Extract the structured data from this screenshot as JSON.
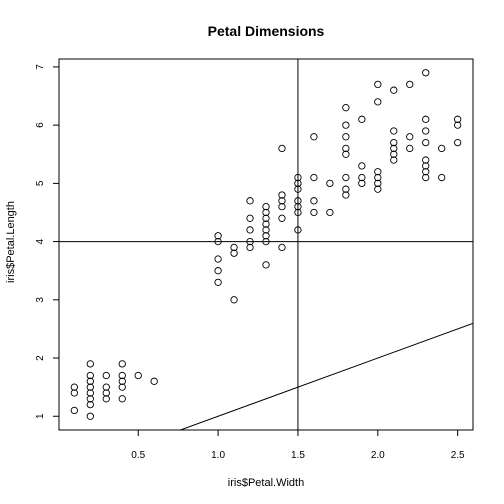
{
  "chart_data": {
    "type": "scatter",
    "title": "Petal Dimensions",
    "xlabel": "iris$Petal.Width",
    "ylabel": "iris$Petal.Length",
    "xlim": [
      0.1,
      2.5
    ],
    "ylim": [
      1.0,
      6.9
    ],
    "x_ticks": [
      0.5,
      1.0,
      1.5,
      2.0,
      2.5
    ],
    "x_tick_labels": [
      "0.5",
      "1.0",
      "1.5",
      "2.0",
      "2.5"
    ],
    "y_ticks": [
      1,
      2,
      3,
      4,
      5,
      6,
      7
    ],
    "y_tick_labels": [
      "1",
      "2",
      "3",
      "4",
      "5",
      "6",
      "7"
    ],
    "grid": false,
    "legend": "none",
    "reference_lines": {
      "vertical_x": 1.5,
      "horizontal_y": 4.0,
      "abline": {
        "intercept": 0,
        "slope": 1
      }
    },
    "points": [
      [
        0.1,
        1.1
      ],
      [
        0.1,
        1.4
      ],
      [
        0.1,
        1.5
      ],
      [
        0.2,
        1.0
      ],
      [
        0.2,
        1.2
      ],
      [
        0.2,
        1.3
      ],
      [
        0.2,
        1.4
      ],
      [
        0.2,
        1.5
      ],
      [
        0.2,
        1.6
      ],
      [
        0.2,
        1.7
      ],
      [
        0.2,
        1.9
      ],
      [
        0.3,
        1.3
      ],
      [
        0.3,
        1.4
      ],
      [
        0.3,
        1.5
      ],
      [
        0.3,
        1.7
      ],
      [
        0.4,
        1.3
      ],
      [
        0.4,
        1.5
      ],
      [
        0.4,
        1.6
      ],
      [
        0.4,
        1.7
      ],
      [
        0.4,
        1.9
      ],
      [
        0.5,
        1.7
      ],
      [
        0.6,
        1.6
      ],
      [
        1.0,
        3.3
      ],
      [
        1.0,
        3.5
      ],
      [
        1.0,
        3.7
      ],
      [
        1.0,
        4.0
      ],
      [
        1.0,
        4.1
      ],
      [
        1.1,
        3.0
      ],
      [
        1.1,
        3.8
      ],
      [
        1.1,
        3.9
      ],
      [
        1.2,
        3.9
      ],
      [
        1.2,
        4.0
      ],
      [
        1.2,
        4.2
      ],
      [
        1.2,
        4.4
      ],
      [
        1.2,
        4.7
      ],
      [
        1.3,
        3.6
      ],
      [
        1.3,
        4.0
      ],
      [
        1.3,
        4.1
      ],
      [
        1.3,
        4.2
      ],
      [
        1.3,
        4.3
      ],
      [
        1.3,
        4.4
      ],
      [
        1.3,
        4.5
      ],
      [
        1.3,
        4.6
      ],
      [
        1.4,
        3.9
      ],
      [
        1.4,
        4.4
      ],
      [
        1.4,
        4.6
      ],
      [
        1.4,
        4.7
      ],
      [
        1.4,
        4.8
      ],
      [
        1.4,
        5.6
      ],
      [
        1.5,
        4.2
      ],
      [
        1.5,
        4.5
      ],
      [
        1.5,
        4.6
      ],
      [
        1.5,
        4.7
      ],
      [
        1.5,
        4.9
      ],
      [
        1.5,
        5.0
      ],
      [
        1.5,
        5.1
      ],
      [
        1.6,
        4.5
      ],
      [
        1.6,
        4.7
      ],
      [
        1.6,
        5.1
      ],
      [
        1.6,
        5.8
      ],
      [
        1.7,
        4.5
      ],
      [
        1.7,
        5.0
      ],
      [
        1.8,
        4.8
      ],
      [
        1.8,
        4.9
      ],
      [
        1.8,
        5.1
      ],
      [
        1.8,
        5.5
      ],
      [
        1.8,
        5.6
      ],
      [
        1.8,
        5.8
      ],
      [
        1.8,
        6.0
      ],
      [
        1.8,
        6.3
      ],
      [
        1.9,
        5.0
      ],
      [
        1.9,
        5.1
      ],
      [
        1.9,
        5.3
      ],
      [
        1.9,
        6.1
      ],
      [
        2.0,
        4.9
      ],
      [
        2.0,
        5.0
      ],
      [
        2.0,
        5.1
      ],
      [
        2.0,
        5.2
      ],
      [
        2.0,
        6.4
      ],
      [
        2.0,
        6.7
      ],
      [
        2.1,
        5.4
      ],
      [
        2.1,
        5.5
      ],
      [
        2.1,
        5.6
      ],
      [
        2.1,
        5.7
      ],
      [
        2.1,
        5.9
      ],
      [
        2.1,
        6.6
      ],
      [
        2.2,
        5.6
      ],
      [
        2.2,
        5.8
      ],
      [
        2.2,
        6.7
      ],
      [
        2.3,
        5.1
      ],
      [
        2.3,
        5.2
      ],
      [
        2.3,
        5.3
      ],
      [
        2.3,
        5.4
      ],
      [
        2.3,
        5.7
      ],
      [
        2.3,
        5.9
      ],
      [
        2.3,
        6.1
      ],
      [
        2.3,
        6.9
      ],
      [
        2.4,
        5.1
      ],
      [
        2.4,
        5.6
      ],
      [
        2.5,
        5.7
      ],
      [
        2.5,
        6.0
      ],
      [
        2.5,
        6.1
      ]
    ]
  }
}
